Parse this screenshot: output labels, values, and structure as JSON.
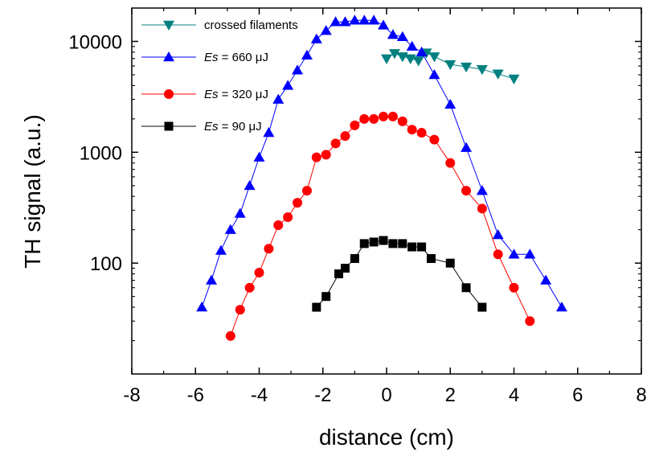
{
  "chart_data": {
    "type": "scatter",
    "xlabel": "distance (cm)",
    "ylabel": "TH signal (a.u.)",
    "xlim": [
      -8,
      8
    ],
    "ylim": [
      10,
      20000
    ],
    "yscale": "log",
    "x_ticks": [
      -8,
      -6,
      -4,
      -2,
      0,
      2,
      4,
      6,
      8
    ],
    "x_tick_labels": [
      "-8",
      "-6",
      "-4",
      "-2",
      "0",
      "2",
      "4",
      "6",
      "8"
    ],
    "y_ticks": [
      100,
      1000,
      10000
    ],
    "y_tick_labels": [
      "100",
      "1000",
      "10000"
    ],
    "legend_position": "top-left",
    "series": [
      {
        "name": "crossed filaments",
        "legend": {
          "label": "crossed filaments"
        },
        "marker": "triangle-down",
        "color": "#008080",
        "x": [
          0.0,
          0.25,
          0.5,
          0.75,
          1.0,
          1.25,
          1.5,
          2.0,
          2.5,
          3.0,
          3.5,
          4.0
        ],
        "y": [
          7000,
          7800,
          7300,
          7000,
          6700,
          7900,
          7300,
          6200,
          5900,
          5600,
          5100,
          4600
        ]
      },
      {
        "name": "Es = 660 μJ",
        "legend": {
          "prefix": "Es",
          "suffix": " = 660  μJ"
        },
        "marker": "triangle-up",
        "color": "#0000ff",
        "x": [
          -5.8,
          -5.5,
          -5.2,
          -4.9,
          -4.6,
          -4.3,
          -4.0,
          -3.7,
          -3.4,
          -3.1,
          -2.8,
          -2.5,
          -2.2,
          -1.9,
          -1.6,
          -1.3,
          -1.0,
          -0.7,
          -0.4,
          -0.1,
          0.2,
          0.5,
          0.8,
          1.1,
          1.5,
          2.0,
          2.5,
          3.0,
          3.5,
          4.0,
          4.5,
          5.0,
          5.5
        ],
        "y": [
          40,
          70,
          130,
          200,
          280,
          500,
          900,
          1500,
          3000,
          4000,
          5500,
          7500,
          10500,
          12500,
          15000,
          15000,
          15500,
          15500,
          15500,
          14000,
          11500,
          11000,
          9000,
          8000,
          5000,
          2700,
          1100,
          450,
          180,
          120,
          120,
          70,
          40
        ]
      },
      {
        "name": "Es = 320 μJ",
        "legend": {
          "prefix": "Es",
          "suffix": " = 320  μJ"
        },
        "marker": "circle",
        "color": "#ff0000",
        "x": [
          -4.9,
          -4.6,
          -4.3,
          -4.0,
          -3.7,
          -3.4,
          -3.1,
          -2.8,
          -2.5,
          -2.2,
          -1.9,
          -1.6,
          -1.3,
          -1.0,
          -0.7,
          -0.4,
          -0.1,
          0.2,
          0.5,
          0.8,
          1.1,
          1.5,
          2.0,
          2.5,
          3.0,
          3.5,
          4.0,
          4.5
        ],
        "y": [
          22,
          38,
          60,
          82,
          135,
          220,
          260,
          350,
          450,
          900,
          950,
          1200,
          1400,
          1750,
          2000,
          2000,
          2100,
          2100,
          1900,
          1600,
          1500,
          1300,
          800,
          450,
          310,
          120,
          60,
          30
        ]
      },
      {
        "name": "Es = 90 μJ",
        "legend": {
          "prefix": "Es",
          "suffix": " = 90  μJ"
        },
        "marker": "square",
        "color": "#000000",
        "x": [
          -2.2,
          -1.9,
          -1.5,
          -1.3,
          -1.0,
          -0.7,
          -0.4,
          -0.1,
          0.2,
          0.5,
          0.8,
          1.1,
          1.4,
          2.0,
          2.5,
          3.0
        ],
        "y": [
          40,
          50,
          80,
          90,
          110,
          150,
          155,
          160,
          150,
          150,
          140,
          140,
          110,
          100,
          60,
          40
        ]
      }
    ]
  }
}
